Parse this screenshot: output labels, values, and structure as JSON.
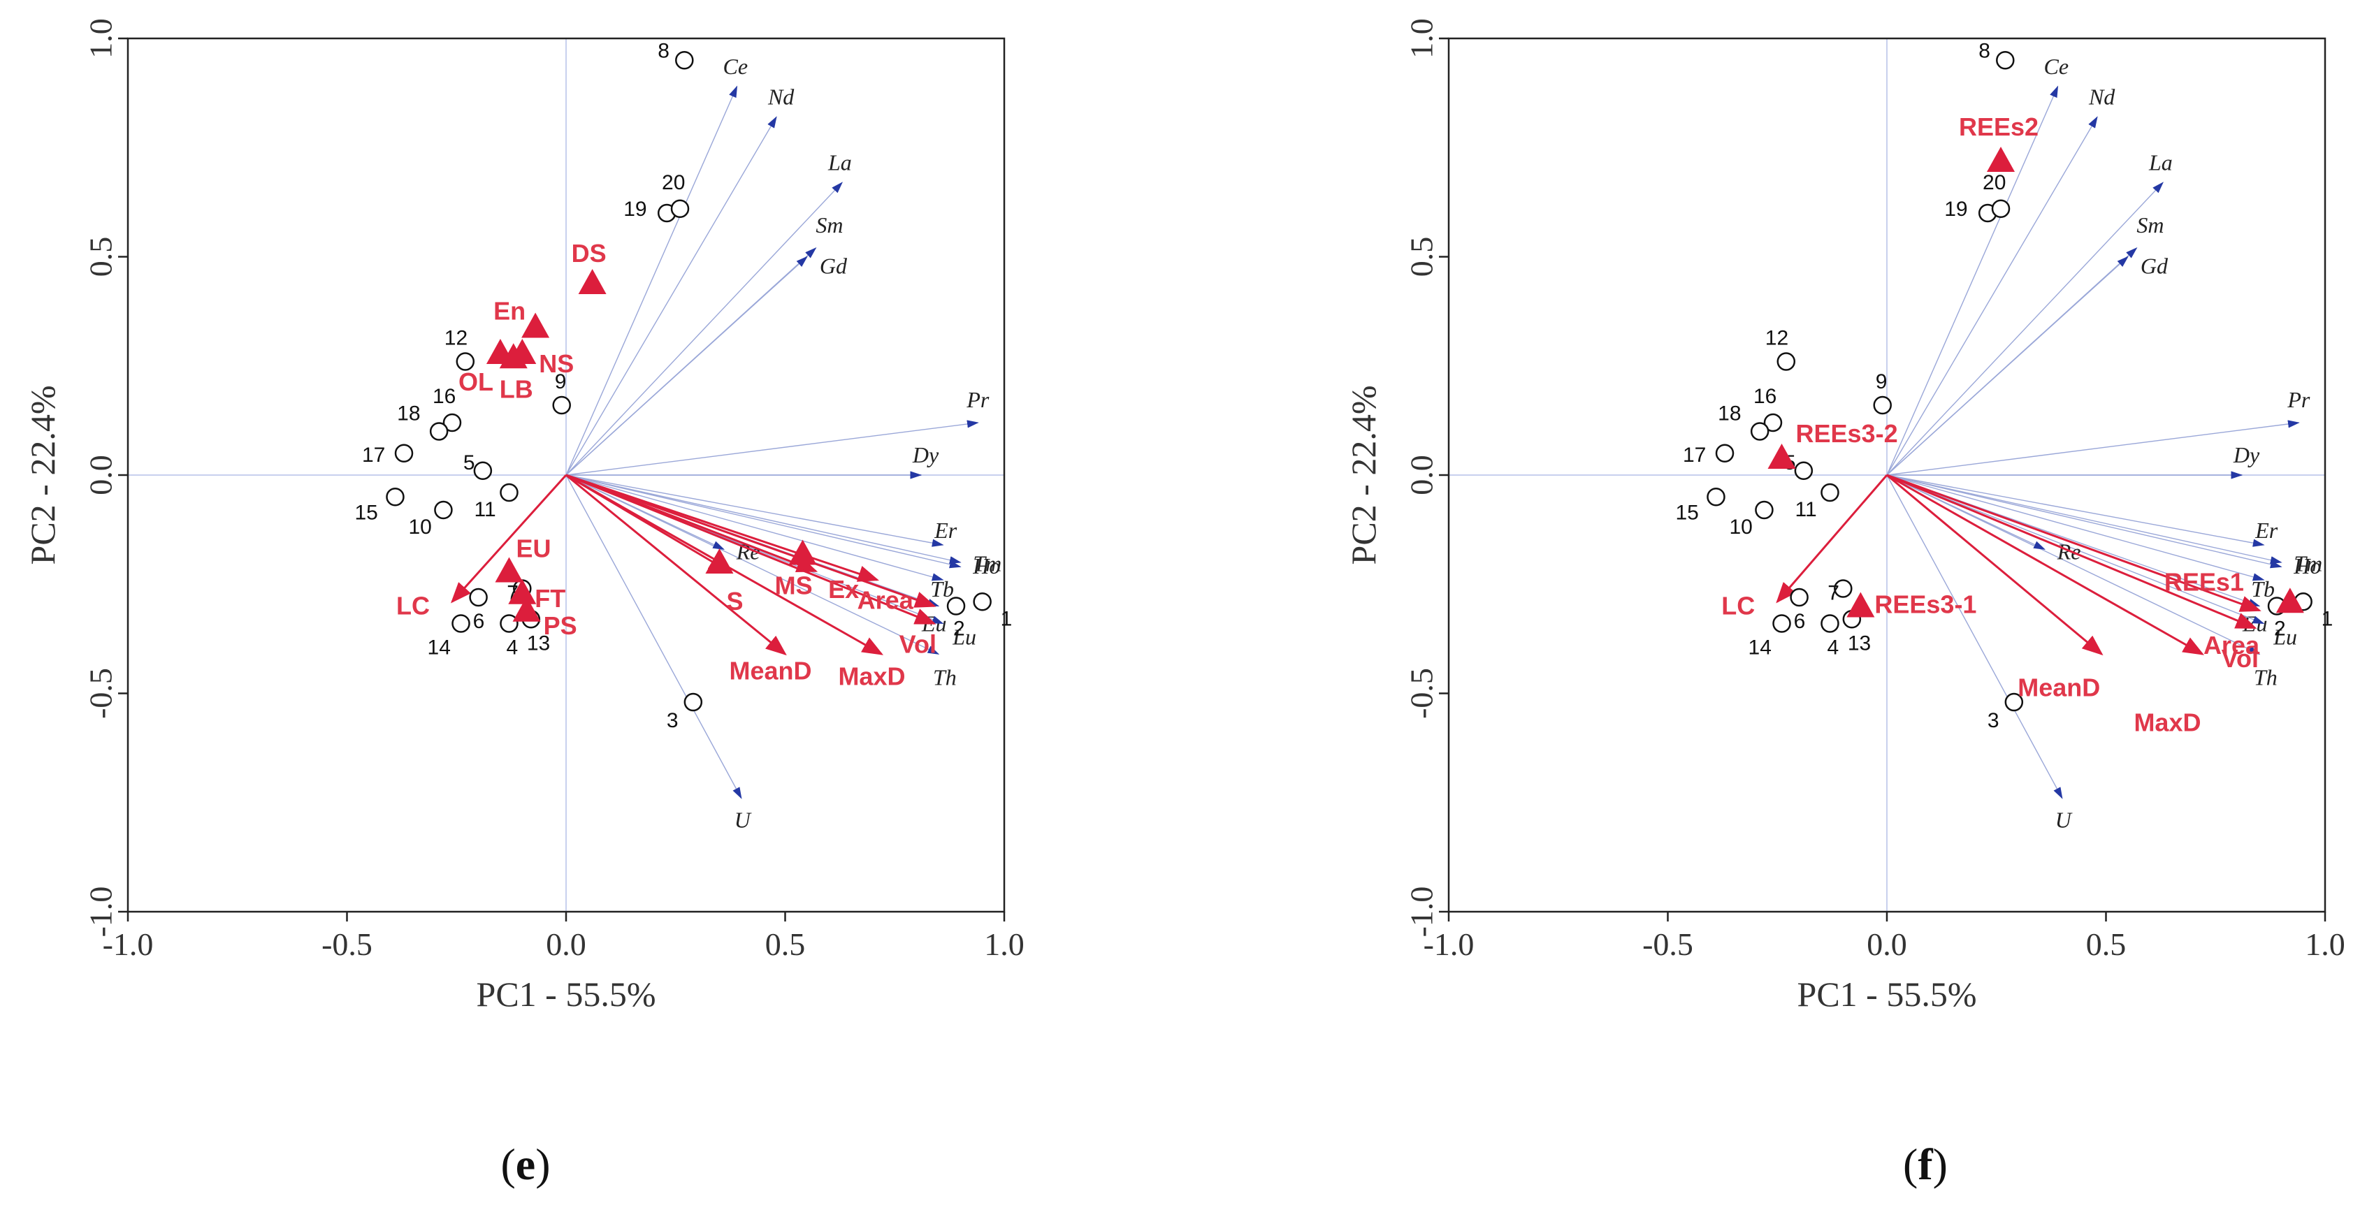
{
  "colors": {
    "env_arrow": "#dc1e3c",
    "env_text": "#e0374a",
    "element_arrow": "#9aa7d8",
    "element_head": "#2438a4",
    "frame": "#222222",
    "zero_line": "#c8d0ee"
  },
  "chart_data": [
    {
      "type": "scatter",
      "panel": "e",
      "xlabel": "PC1 - 55.5%",
      "ylabel": "PC2 - 22.4%",
      "xlim": [
        -1.0,
        1.0
      ],
      "ylim": [
        -1.0,
        1.0
      ],
      "xticks": [
        "-1.0",
        "-0.5",
        "0.0",
        "0.5",
        "1.0"
      ],
      "yticks": [
        "1.0",
        "0.5",
        "0.0",
        "-0.5",
        "-1.0"
      ],
      "sites": [
        {
          "label": "1",
          "x": 0.95,
          "y": -0.29
        },
        {
          "label": "2",
          "x": 0.89,
          "y": -0.3
        },
        {
          "label": "3",
          "x": 0.29,
          "y": -0.52
        },
        {
          "label": "4",
          "x": -0.13,
          "y": -0.34
        },
        {
          "label": "5",
          "x": -0.19,
          "y": 0.01
        },
        {
          "label": "6",
          "x": -0.2,
          "y": -0.28
        },
        {
          "label": "7",
          "x": -0.1,
          "y": -0.26
        },
        {
          "label": "8",
          "x": 0.27,
          "y": 0.95
        },
        {
          "label": "9",
          "x": -0.01,
          "y": 0.16
        },
        {
          "label": "10",
          "x": -0.28,
          "y": -0.08
        },
        {
          "label": "11",
          "x": -0.13,
          "y": -0.04
        },
        {
          "label": "12",
          "x": -0.23,
          "y": 0.26
        },
        {
          "label": "13",
          "x": -0.08,
          "y": -0.33
        },
        {
          "label": "14",
          "x": -0.24,
          "y": -0.34
        },
        {
          "label": "15",
          "x": -0.39,
          "y": -0.05
        },
        {
          "label": "16",
          "x": -0.26,
          "y": 0.12
        },
        {
          "label": "17",
          "x": -0.37,
          "y": 0.05
        },
        {
          "label": "18",
          "x": -0.29,
          "y": 0.1
        },
        {
          "label": "19",
          "x": 0.23,
          "y": 0.6
        },
        {
          "label": "20",
          "x": 0.26,
          "y": 0.61
        }
      ],
      "elements": [
        {
          "label": "Ce",
          "x": 0.39,
          "y": 0.89
        },
        {
          "label": "Nd",
          "x": 0.48,
          "y": 0.82
        },
        {
          "label": "La",
          "x": 0.63,
          "y": 0.67
        },
        {
          "label": "Sm",
          "x": 0.57,
          "y": 0.52
        },
        {
          "label": "Gd",
          "x": 0.55,
          "y": 0.5
        },
        {
          "label": "Pr",
          "x": 0.94,
          "y": 0.12
        },
        {
          "label": "Dy",
          "x": 0.81,
          "y": 0.0
        },
        {
          "label": "Er",
          "x": 0.86,
          "y": -0.16
        },
        {
          "label": "Ho",
          "x": 0.9,
          "y": -0.2
        },
        {
          "label": "Tm",
          "x": 0.9,
          "y": -0.21
        },
        {
          "label": "Tb",
          "x": 0.86,
          "y": -0.24
        },
        {
          "label": "Eu",
          "x": 0.85,
          "y": -0.3
        },
        {
          "label": "Lu",
          "x": 0.86,
          "y": -0.34
        },
        {
          "label": "Th",
          "x": 0.85,
          "y": -0.41
        },
        {
          "label": "Re",
          "x": 0.36,
          "y": -0.17
        },
        {
          "label": "U",
          "x": 0.4,
          "y": -0.74
        }
      ],
      "env_vectors": [
        {
          "label": "LC",
          "x": -0.26,
          "y": -0.29
        },
        {
          "label": "S",
          "x": 0.37,
          "y": -0.22
        },
        {
          "label": "MeanD",
          "x": 0.5,
          "y": -0.41
        },
        {
          "label": "MaxD",
          "x": 0.72,
          "y": -0.41
        },
        {
          "label": "MS",
          "x": 0.57,
          "y": -0.22
        },
        {
          "label": "Ex",
          "x": 0.71,
          "y": -0.24
        },
        {
          "label": "Area",
          "x": 0.84,
          "y": -0.3
        },
        {
          "label": "Vol",
          "x": 0.84,
          "y": -0.34
        }
      ],
      "env_centroids": [
        {
          "label": "DS",
          "x": 0.06,
          "y": 0.44
        },
        {
          "label": "En",
          "x": -0.07,
          "y": 0.34
        },
        {
          "label": "NS",
          "x": -0.1,
          "y": 0.28
        },
        {
          "label": "OL",
          "x": -0.15,
          "y": 0.28
        },
        {
          "label": "LB",
          "x": -0.12,
          "y": 0.27
        },
        {
          "label": "EU",
          "x": -0.13,
          "y": -0.22
        },
        {
          "label": "FT",
          "x": -0.1,
          "y": -0.27
        },
        {
          "label": "PS",
          "x": -0.09,
          "y": -0.31
        },
        {
          "label": "S",
          "x": 0.35,
          "y": -0.2
        },
        {
          "label": "MS",
          "x": 0.54,
          "y": -0.18
        }
      ]
    },
    {
      "type": "scatter",
      "panel": "f",
      "xlabel": "PC1 - 55.5%",
      "ylabel": "PC2 - 22.4%",
      "xlim": [
        -1.0,
        1.0
      ],
      "ylim": [
        -1.0,
        1.0
      ],
      "xticks": [
        "-1.0",
        "-0.5",
        "0.0",
        "0.5",
        "1.0"
      ],
      "yticks": [
        "1.0",
        "0.5",
        "0.0",
        "-0.5",
        "-1.0"
      ],
      "sites": [
        {
          "label": "1",
          "x": 0.95,
          "y": -0.29
        },
        {
          "label": "2",
          "x": 0.89,
          "y": -0.3
        },
        {
          "label": "3",
          "x": 0.29,
          "y": -0.52
        },
        {
          "label": "4",
          "x": -0.13,
          "y": -0.34
        },
        {
          "label": "5",
          "x": -0.19,
          "y": 0.01
        },
        {
          "label": "6",
          "x": -0.2,
          "y": -0.28
        },
        {
          "label": "7",
          "x": -0.1,
          "y": -0.26
        },
        {
          "label": "8",
          "x": 0.27,
          "y": 0.95
        },
        {
          "label": "9",
          "x": -0.01,
          "y": 0.16
        },
        {
          "label": "10",
          "x": -0.28,
          "y": -0.08
        },
        {
          "label": "11",
          "x": -0.13,
          "y": -0.04
        },
        {
          "label": "12",
          "x": -0.23,
          "y": 0.26
        },
        {
          "label": "13",
          "x": -0.08,
          "y": -0.33
        },
        {
          "label": "14",
          "x": -0.24,
          "y": -0.34
        },
        {
          "label": "15",
          "x": -0.39,
          "y": -0.05
        },
        {
          "label": "16",
          "x": -0.26,
          "y": 0.12
        },
        {
          "label": "17",
          "x": -0.37,
          "y": 0.05
        },
        {
          "label": "18",
          "x": -0.29,
          "y": 0.1
        },
        {
          "label": "19",
          "x": 0.23,
          "y": 0.6
        },
        {
          "label": "20",
          "x": 0.26,
          "y": 0.61
        }
      ],
      "elements": [
        {
          "label": "Ce",
          "x": 0.39,
          "y": 0.89
        },
        {
          "label": "Nd",
          "x": 0.48,
          "y": 0.82
        },
        {
          "label": "La",
          "x": 0.63,
          "y": 0.67
        },
        {
          "label": "Sm",
          "x": 0.57,
          "y": 0.52
        },
        {
          "label": "Gd",
          "x": 0.55,
          "y": 0.5
        },
        {
          "label": "Pr",
          "x": 0.94,
          "y": 0.12
        },
        {
          "label": "Dy",
          "x": 0.81,
          "y": 0.0
        },
        {
          "label": "Er",
          "x": 0.86,
          "y": -0.16
        },
        {
          "label": "Ho",
          "x": 0.9,
          "y": -0.2
        },
        {
          "label": "Tm",
          "x": 0.9,
          "y": -0.21
        },
        {
          "label": "Tb",
          "x": 0.86,
          "y": -0.24
        },
        {
          "label": "Eu",
          "x": 0.85,
          "y": -0.3
        },
        {
          "label": "Lu",
          "x": 0.86,
          "y": -0.34
        },
        {
          "label": "Th",
          "x": 0.85,
          "y": -0.41
        },
        {
          "label": "Re",
          "x": 0.36,
          "y": -0.17
        },
        {
          "label": "U",
          "x": 0.4,
          "y": -0.74
        }
      ],
      "env_vectors": [
        {
          "label": "LC",
          "x": -0.25,
          "y": -0.29
        },
        {
          "label": "MeanD",
          "x": 0.49,
          "y": -0.41
        },
        {
          "label": "MaxD",
          "x": 0.72,
          "y": -0.41
        },
        {
          "label": "Area",
          "x": 0.85,
          "y": -0.31
        },
        {
          "label": "Vol",
          "x": 0.84,
          "y": -0.35
        }
      ],
      "env_centroids": [
        {
          "label": "REEs2",
          "x": 0.26,
          "y": 0.72
        },
        {
          "label": "REEs3-2",
          "x": -0.24,
          "y": 0.04
        },
        {
          "label": "REEs3-1",
          "x": -0.06,
          "y": -0.3
        },
        {
          "label": "REEs1",
          "x": 0.92,
          "y": -0.29
        }
      ]
    }
  ],
  "panel_labels": {
    "e": "e",
    "f": "f"
  }
}
